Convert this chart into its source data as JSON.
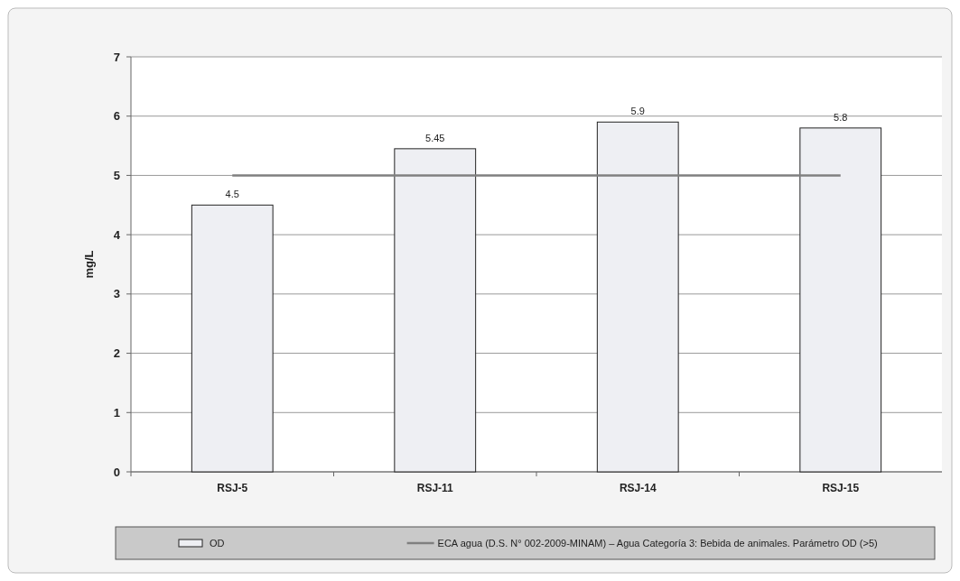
{
  "chart_data": {
    "type": "bar",
    "ylabel": "mg/L",
    "categories": [
      "RSJ-5",
      "RSJ-11",
      "RSJ-14",
      "RSJ-15"
    ],
    "series": [
      {
        "name": "OD",
        "color": "#eeeff3",
        "values": [
          4.5,
          5.45,
          5.9,
          5.8
        ],
        "value_labels": [
          "4.5",
          "5.45",
          "5.9",
          "5.8"
        ]
      },
      {
        "name": "ECA agua (D.S. N° 002-2009-MINAM)  – Agua Categoría 3: Bebida de animales. Parámetro  OD (>5)",
        "type": "line",
        "color": "#808080",
        "values": [
          5,
          5,
          5,
          5
        ]
      }
    ],
    "ylim": [
      0,
      7
    ],
    "yticks": [
      0,
      1,
      2,
      3,
      4,
      5,
      6,
      7
    ],
    "grid": "y",
    "legend": "bottom"
  }
}
